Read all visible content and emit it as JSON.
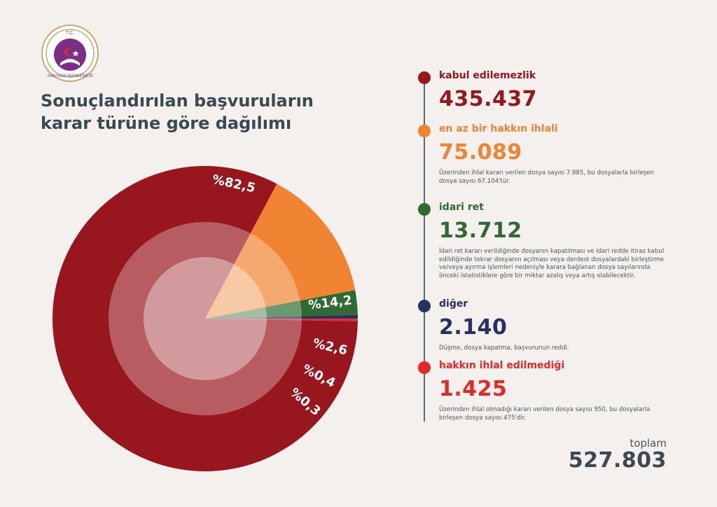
{
  "header": {
    "title_line1": "Sonuçlandırılan başvuruların",
    "title_line2": "karar türüne göre dağılımı",
    "logo_top_text": "T.C.",
    "logo_bottom_text": "ANAYASA MAHKEMESİ"
  },
  "colors": {
    "kabul": "#98161d",
    "ihlal": "#f08432",
    "idari": "#2f6a32",
    "diger": "#263061",
    "ihlal_yok": "#e42a28",
    "logo": "#7b2e83"
  },
  "legend": {
    "items": [
      {
        "label": "kabul edilemezlik",
        "value": "435.437",
        "note": ""
      },
      {
        "label": "en az bir hakkın ihlali",
        "value": "75.089",
        "note": "Üzerinden ihlal kararı verilen dosya sayısı 7.985, bu dosyalarla birleşen dosya sayısı 67.104'tür."
      },
      {
        "label": "idari ret",
        "value": "13.712",
        "note": "İdari ret kararı verildiğinde dosyanın kapatılması ve idari redde itiraz kabul edildiğinde tekrar dosyanın açılması veya derdest dosyalardaki birleştirme ve/veya ayırma işlemleri nedeniyle karara bağlanan dosya sayılarında önceki istatistiklere göre bir miktar azalış veya artış olabilecektir."
      },
      {
        "label": "diğer",
        "value": "2.140",
        "note": "Düşme, dosya kapatma, başvurunun reddi."
      },
      {
        "label": "hakkın ihlal edilmediği",
        "value": "1.425",
        "note": "Üzerinden ihlal olmadığı kararı verilen dosya sayısı 950, bu dosyalarla birleşen dosya sayısı 475'dir."
      }
    ]
  },
  "total": {
    "label": "toplam",
    "value": "527.803"
  },
  "chart_data": {
    "type": "pie",
    "title": "Sonuçlandırılan başvuruların karar türüne göre dağılımı",
    "categories": [
      "kabul edilemezlik",
      "en az bir hakkın ihlali",
      "idari ret",
      "diğer",
      "hakkın ihlal edilmediği"
    ],
    "values": [
      435437,
      75089,
      13712,
      2140,
      1425
    ],
    "percent_labels": [
      "%82,5",
      "%14,2",
      "%2,6",
      "%0,4",
      "%0,3"
    ],
    "total": 527803
  }
}
